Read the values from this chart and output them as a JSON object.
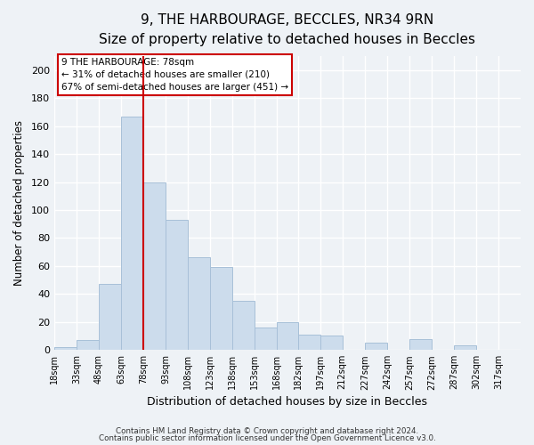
{
  "title": "9, THE HARBOURAGE, BECCLES, NR34 9RN",
  "subtitle": "Size of property relative to detached houses in Beccles",
  "xlabel": "Distribution of detached houses by size in Beccles",
  "ylabel": "Number of detached properties",
  "bar_color": "#ccdcec",
  "bar_edge_color": "#a8c0d8",
  "vline_x": 78,
  "vline_color": "#cc0000",
  "categories": [
    "18sqm",
    "33sqm",
    "48sqm",
    "63sqm",
    "78sqm",
    "93sqm",
    "108sqm",
    "123sqm",
    "138sqm",
    "153sqm",
    "168sqm",
    "182sqm",
    "197sqm",
    "212sqm",
    "227sqm",
    "242sqm",
    "257sqm",
    "272sqm",
    "287sqm",
    "302sqm",
    "317sqm"
  ],
  "bin_edges": [
    18,
    33,
    48,
    63,
    78,
    93,
    108,
    123,
    138,
    153,
    168,
    182,
    197,
    212,
    227,
    242,
    257,
    272,
    287,
    302,
    317,
    332
  ],
  "values": [
    2,
    7,
    47,
    167,
    120,
    93,
    66,
    59,
    35,
    16,
    20,
    11,
    10,
    0,
    5,
    0,
    8,
    0,
    3,
    0,
    0
  ],
  "ylim": [
    0,
    210
  ],
  "yticks": [
    0,
    20,
    40,
    60,
    80,
    100,
    120,
    140,
    160,
    180,
    200
  ],
  "annotation_title": "9 THE HARBOURAGE: 78sqm",
  "annotation_line1": "← 31% of detached houses are smaller (210)",
  "annotation_line2": "67% of semi-detached houses are larger (451) →",
  "footer1": "Contains HM Land Registry data © Crown copyright and database right 2024.",
  "footer2": "Contains public sector information licensed under the Open Government Licence v3.0.",
  "background_color": "#eef2f6",
  "plot_background_color": "#eef2f6",
  "grid_color": "white",
  "title_fontsize": 11,
  "subtitle_fontsize": 9.5,
  "ylabel_fontsize": 8.5,
  "xlabel_fontsize": 9
}
